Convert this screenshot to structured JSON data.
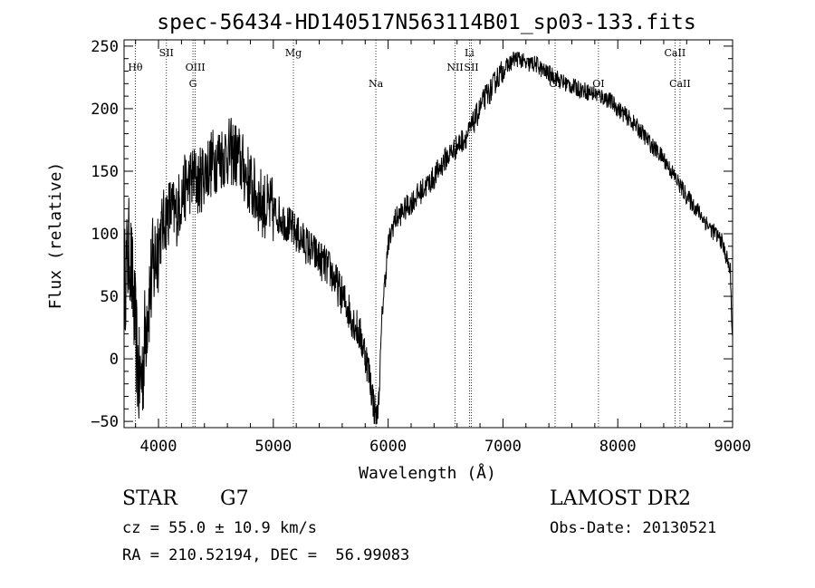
{
  "chart_data": {
    "type": "line",
    "title": "spec-56434-HD140517N563114B01_sp03-133.fits",
    "xlabel": "Wavelength (Å)",
    "ylabel": "Flux (relative)",
    "xlim": [
      3700,
      9000
    ],
    "ylim": [
      -55,
      255
    ],
    "x_ticks": [
      4000,
      5000,
      6000,
      7000,
      8000,
      9000
    ],
    "x_tick_labels": [
      "4000",
      "5000",
      "6000",
      "7000",
      "8000",
      "9000"
    ],
    "y_ticks": [
      -50,
      0,
      50,
      100,
      150,
      200,
      250
    ],
    "y_tick_labels": [
      "−50",
      "0",
      "50",
      "100",
      "150",
      "200",
      "250"
    ],
    "grid": false,
    "series": [
      {
        "x": [
          3700,
          3750,
          3800,
          3830,
          3860,
          3900,
          3950,
          4000,
          4050,
          4100,
          4150,
          4200,
          4250,
          4300,
          4350,
          4400,
          4450,
          4500,
          4550,
          4600,
          4650,
          4700,
          4750,
          4800,
          4850,
          4900,
          4950,
          5000,
          5050,
          5100,
          5150,
          5200,
          5250,
          5300,
          5350,
          5400,
          5450,
          5500,
          5550,
          5600,
          5650,
          5700,
          5750,
          5800,
          5850,
          5880,
          5900,
          5920,
          5950,
          6000,
          6050,
          6100,
          6200,
          6300,
          6400,
          6500,
          6600,
          6700,
          6750,
          6800,
          6850,
          6900,
          6950,
          7000,
          7050,
          7100,
          7150,
          7200,
          7250,
          7300,
          7350,
          7400,
          7450,
          7500,
          7550,
          7600,
          7650,
          7700,
          7750,
          7800,
          7850,
          7900,
          7950,
          8000,
          8100,
          8200,
          8300,
          8400,
          8500,
          8600,
          8700,
          8800,
          8900,
          8950,
          8980,
          9000
        ],
        "y": [
          60,
          90,
          20,
          -20,
          -10,
          40,
          70,
          95,
          110,
          120,
          115,
          130,
          140,
          145,
          140,
          150,
          155,
          160,
          162,
          165,
          165,
          160,
          150,
          140,
          130,
          125,
          120,
          118,
          115,
          110,
          105,
          100,
          95,
          90,
          85,
          80,
          75,
          70,
          60,
          50,
          40,
          30,
          20,
          5,
          -20,
          -40,
          -50,
          -30,
          40,
          90,
          110,
          115,
          125,
          135,
          145,
          160,
          170,
          180,
          190,
          200,
          210,
          215,
          225,
          230,
          235,
          240,
          240,
          235,
          236,
          235,
          230,
          228,
          226,
          222,
          220,
          218,
          216,
          215,
          213,
          212,
          210,
          208,
          205,
          200,
          192,
          182,
          170,
          160,
          145,
          130,
          118,
          105,
          95,
          80,
          70,
          10
        ]
      }
    ],
    "line_markers": [
      {
        "label": "Hθ",
        "x": 3798,
        "row": 1
      },
      {
        "label": "SII",
        "x": 4069,
        "row": 0
      },
      {
        "label": "OIII",
        "x": 4320,
        "row": 1
      },
      {
        "label": "G",
        "x": 4300,
        "row": 2
      },
      {
        "label": "Mg",
        "x": 5175,
        "row": 0
      },
      {
        "label": "Na",
        "x": 5893,
        "row": 2
      },
      {
        "label": "Li",
        "x": 6708,
        "row": 0
      },
      {
        "label": "NII",
        "x": 6583,
        "row": 1
      },
      {
        "label": "SII",
        "x": 6725,
        "row": 1
      },
      {
        "label": "OI",
        "x": 7454,
        "row": 2
      },
      {
        "label": "OI",
        "x": 7832,
        "row": 2
      },
      {
        "label": "CaII",
        "x": 8498,
        "row": 0
      },
      {
        "label": "CaII",
        "x": 8542,
        "row": 2
      }
    ]
  },
  "info": {
    "class_label": "STAR",
    "subclass": "G7",
    "survey": "LAMOST DR2",
    "cz": "cz = 55.0 ± 10.9 km/s",
    "obs_date": "Obs-Date: 20130521",
    "radec": "RA = 210.52194, DEC =  56.99083"
  }
}
